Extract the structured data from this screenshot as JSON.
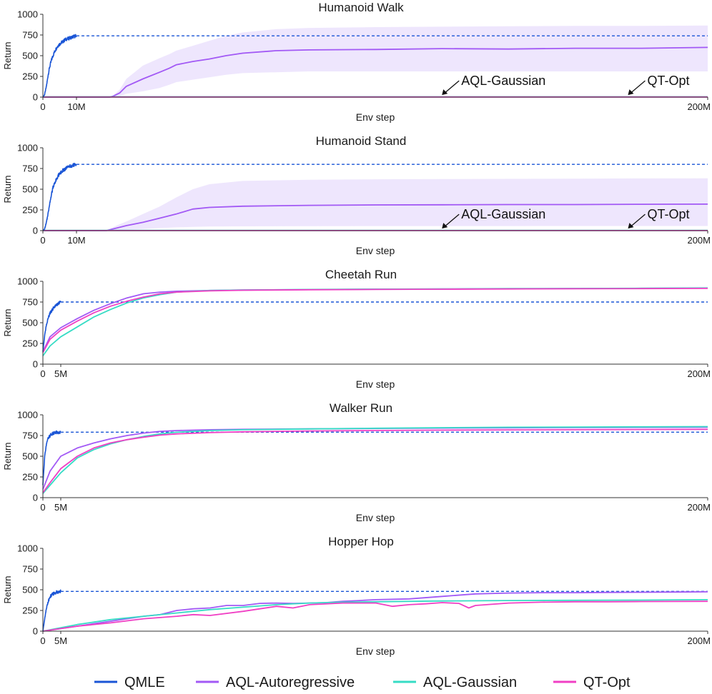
{
  "colors": {
    "QMLE": "#1a55d6",
    "AQL-Autoregressive": "#a259f5",
    "AQL-Gaussian": "#36dcc5",
    "QT-Opt": "#f03fc4",
    "band": "#ece3fd",
    "axis": "#333333"
  },
  "legend": {
    "items": [
      {
        "name": "QMLE",
        "label": "QMLE"
      },
      {
        "name": "AQL-Autoregressive",
        "label": "AQL-Autoregressive"
      },
      {
        "name": "AQL-Gaussian",
        "label": "AQL-Gaussian"
      },
      {
        "name": "QT-Opt",
        "label": "QT-Opt"
      }
    ]
  },
  "chart_data": [
    {
      "type": "line",
      "title": "Humanoid Walk",
      "xlabel": "Env step",
      "ylabel": "Return",
      "x_unit": "M",
      "xlim": [
        0,
        200
      ],
      "ylim": [
        0,
        1000
      ],
      "x_tick_values": [
        0,
        10,
        200
      ],
      "x_tick_labels": [
        "0",
        "10M",
        "200M"
      ],
      "y_tick_values": [
        0,
        250,
        500,
        750,
        1000
      ],
      "y_tick_labels": [
        "0",
        "250",
        "500",
        "750",
        "1000"
      ],
      "reference_line": {
        "series": "QMLE",
        "value": 740,
        "style": "dashed"
      },
      "annotations": [
        {
          "text": "AQL-Gaussian",
          "x": 120,
          "y": 25
        },
        {
          "text": "QT-Opt",
          "x": 176,
          "y": 25
        }
      ],
      "series": [
        {
          "name": "QMLE",
          "x": [
            0,
            0.5,
            1,
            1.5,
            2,
            2.5,
            3,
            3.5,
            4,
            4.5,
            5,
            5.5,
            6,
            6.5,
            7,
            7.5,
            8,
            8.5,
            9,
            9.5,
            10
          ],
          "y": [
            0,
            30,
            120,
            250,
            360,
            440,
            500,
            550,
            590,
            620,
            640,
            660,
            670,
            690,
            700,
            705,
            715,
            720,
            730,
            735,
            740
          ],
          "noisy": true
        },
        {
          "name": "AQL-Autoregressive",
          "x": [
            0,
            10,
            20,
            21,
            23,
            25,
            30,
            35,
            38,
            40,
            45,
            50,
            55,
            60,
            70,
            80,
            100,
            120,
            140,
            160,
            180,
            200
          ],
          "y": [
            0,
            0,
            0,
            10,
            50,
            130,
            220,
            300,
            350,
            390,
            430,
            460,
            500,
            530,
            560,
            570,
            575,
            585,
            580,
            590,
            590,
            600
          ],
          "band_low": [
            0,
            0,
            0,
            0,
            10,
            40,
            70,
            110,
            150,
            180,
            210,
            240,
            270,
            290,
            300,
            310,
            310,
            310,
            310,
            310,
            310,
            310
          ],
          "band_high": [
            0,
            0,
            0,
            20,
            90,
            220,
            380,
            470,
            520,
            560,
            620,
            680,
            740,
            780,
            820,
            835,
            845,
            850,
            855,
            860,
            860,
            865
          ]
        },
        {
          "name": "AQL-Gaussian",
          "x": [
            0,
            200
          ],
          "y": [
            3,
            3
          ]
        },
        {
          "name": "QT-Opt",
          "x": [
            0,
            200
          ],
          "y": [
            1,
            1
          ]
        }
      ]
    },
    {
      "type": "line",
      "title": "Humanoid Stand",
      "xlabel": "Env step",
      "ylabel": "Return",
      "x_unit": "M",
      "xlim": [
        0,
        200
      ],
      "ylim": [
        0,
        1000
      ],
      "x_tick_values": [
        0,
        10,
        200
      ],
      "x_tick_labels": [
        "0",
        "10M",
        "200M"
      ],
      "y_tick_values": [
        0,
        250,
        500,
        750,
        1000
      ],
      "y_tick_labels": [
        "0",
        "250",
        "500",
        "750",
        "1000"
      ],
      "reference_line": {
        "series": "QMLE",
        "value": 800,
        "style": "dashed"
      },
      "annotations": [
        {
          "text": "AQL-Gaussian",
          "x": 120,
          "y": 25
        },
        {
          "text": "QT-Opt",
          "x": 176,
          "y": 25
        }
      ],
      "series": [
        {
          "name": "QMLE",
          "x": [
            0,
            0.5,
            1,
            1.5,
            2,
            2.5,
            3,
            3.5,
            4,
            4.5,
            5,
            5.5,
            6,
            6.5,
            7,
            7.5,
            8,
            8.5,
            9,
            9.5,
            10
          ],
          "y": [
            0,
            20,
            90,
            200,
            320,
            430,
            520,
            580,
            620,
            660,
            690,
            710,
            730,
            740,
            755,
            765,
            775,
            780,
            790,
            795,
            800
          ],
          "noisy": true
        },
        {
          "name": "AQL-Autoregressive",
          "x": [
            0,
            10,
            19,
            20,
            22,
            25,
            30,
            35,
            40,
            45,
            50,
            60,
            80,
            100,
            120,
            140,
            160,
            180,
            200
          ],
          "y": [
            0,
            0,
            0,
            10,
            30,
            60,
            100,
            150,
            200,
            260,
            280,
            295,
            305,
            310,
            312,
            315,
            315,
            318,
            320
          ],
          "band_low": [
            0,
            0,
            0,
            0,
            5,
            10,
            20,
            30,
            40,
            45,
            50,
            52,
            54,
            55,
            55,
            55,
            56,
            56,
            56
          ],
          "band_high": [
            0,
            0,
            0,
            20,
            60,
            110,
            200,
            290,
            400,
            500,
            560,
            600,
            615,
            620,
            622,
            625,
            628,
            630,
            632
          ]
        },
        {
          "name": "AQL-Gaussian",
          "x": [
            0,
            200
          ],
          "y": [
            3,
            3
          ]
        },
        {
          "name": "QT-Opt",
          "x": [
            0,
            200
          ],
          "y": [
            1,
            1
          ]
        }
      ]
    },
    {
      "type": "line",
      "title": "Cheetah Run",
      "xlabel": "Env step",
      "ylabel": "Return",
      "x_unit": "M",
      "xlim": [
        0,
        200
      ],
      "ylim": [
        0,
        1000
      ],
      "x_tick_values": [
        0,
        5,
        200
      ],
      "x_tick_labels": [
        "0",
        "5M",
        "200M"
      ],
      "y_tick_values": [
        0,
        250,
        500,
        750,
        1000
      ],
      "y_tick_labels": [
        "0",
        "250",
        "500",
        "750",
        "1000"
      ],
      "reference_line": {
        "series": "QMLE",
        "value": 750,
        "style": "dashed"
      },
      "annotations": [],
      "series": [
        {
          "name": "QMLE",
          "x": [
            0,
            0.5,
            1,
            1.5,
            2,
            2.5,
            3,
            3.5,
            4,
            4.5,
            5
          ],
          "y": [
            150,
            350,
            480,
            560,
            610,
            650,
            680,
            700,
            720,
            735,
            750
          ],
          "noisy": true
        },
        {
          "name": "AQL-Autoregressive",
          "x": [
            0,
            2,
            5,
            10,
            15,
            20,
            25,
            30,
            35,
            40,
            50,
            60,
            80,
            100,
            120,
            140,
            160,
            180,
            200
          ],
          "y": [
            150,
            330,
            440,
            550,
            650,
            730,
            800,
            850,
            870,
            880,
            890,
            895,
            900,
            905,
            905,
            910,
            912,
            915,
            918
          ]
        },
        {
          "name": "AQL-Gaussian",
          "x": [
            0,
            2,
            5,
            10,
            15,
            20,
            25,
            30,
            35,
            40,
            50,
            60,
            80,
            100,
            120,
            140,
            160,
            180,
            200
          ],
          "y": [
            100,
            220,
            330,
            450,
            570,
            660,
            740,
            800,
            840,
            870,
            890,
            895,
            902,
            905,
            908,
            912,
            914,
            916,
            920
          ]
        },
        {
          "name": "QT-Opt",
          "x": [
            0,
            2,
            5,
            10,
            15,
            20,
            25,
            30,
            35,
            40,
            50,
            60,
            80,
            100,
            120,
            140,
            160,
            180,
            200
          ],
          "y": [
            140,
            300,
            410,
            520,
            620,
            700,
            760,
            810,
            850,
            870,
            885,
            892,
            898,
            902,
            905,
            908,
            910,
            912,
            915
          ]
        }
      ]
    },
    {
      "type": "line",
      "title": "Walker Run",
      "xlabel": "Env step",
      "ylabel": "Return",
      "x_unit": "M",
      "xlim": [
        0,
        200
      ],
      "ylim": [
        0,
        1000
      ],
      "x_tick_values": [
        0,
        5,
        200
      ],
      "x_tick_labels": [
        "0",
        "5M",
        "200M"
      ],
      "y_tick_values": [
        0,
        250,
        500,
        750,
        1000
      ],
      "y_tick_labels": [
        "0",
        "250",
        "500",
        "750",
        "1000"
      ],
      "reference_line": {
        "series": "QMLE",
        "value": 790,
        "style": "dashed"
      },
      "annotations": [],
      "series": [
        {
          "name": "QMLE",
          "x": [
            0,
            0.5,
            1,
            1.5,
            2,
            2.5,
            3,
            3.5,
            4,
            4.5,
            5
          ],
          "y": [
            150,
            500,
            650,
            720,
            750,
            770,
            780,
            785,
            788,
            790,
            790
          ],
          "noisy": true
        },
        {
          "name": "AQL-Autoregressive",
          "x": [
            0,
            2,
            5,
            10,
            15,
            20,
            25,
            30,
            35,
            40,
            50,
            60,
            80,
            100,
            120,
            140,
            160,
            180,
            200
          ],
          "y": [
            100,
            320,
            500,
            600,
            660,
            710,
            750,
            780,
            800,
            810,
            820,
            825,
            830,
            835,
            840,
            843,
            846,
            848,
            850
          ]
        },
        {
          "name": "AQL-Gaussian",
          "x": [
            0,
            2,
            5,
            10,
            15,
            20,
            25,
            30,
            35,
            40,
            50,
            60,
            80,
            100,
            120,
            140,
            160,
            180,
            200
          ],
          "y": [
            50,
            150,
            300,
            480,
            580,
            650,
            700,
            740,
            770,
            790,
            810,
            820,
            830,
            838,
            845,
            850,
            853,
            855,
            858
          ]
        },
        {
          "name": "QT-Opt",
          "x": [
            0,
            2,
            5,
            10,
            15,
            20,
            25,
            30,
            35,
            40,
            50,
            60,
            80,
            100,
            120,
            140,
            160,
            180,
            200
          ],
          "y": [
            60,
            180,
            350,
            500,
            600,
            660,
            700,
            730,
            755,
            770,
            785,
            795,
            805,
            810,
            815,
            818,
            820,
            822,
            825
          ]
        }
      ]
    },
    {
      "type": "line",
      "title": "Hopper Hop",
      "xlabel": "Env step",
      "ylabel": "Return",
      "x_unit": "M",
      "xlim": [
        0,
        200
      ],
      "ylim": [
        0,
        1000
      ],
      "x_tick_values": [
        0,
        5,
        200
      ],
      "x_tick_labels": [
        "0",
        "5M",
        "200M"
      ],
      "y_tick_values": [
        0,
        250,
        500,
        750,
        1000
      ],
      "y_tick_labels": [
        "0",
        "250",
        "500",
        "750",
        "1000"
      ],
      "reference_line": {
        "series": "QMLE",
        "value": 480,
        "style": "dashed"
      },
      "annotations": [],
      "series": [
        {
          "name": "QMLE",
          "x": [
            0,
            0.5,
            1,
            1.5,
            2,
            2.5,
            3,
            3.5,
            4,
            4.5,
            5
          ],
          "y": [
            0,
            150,
            280,
            360,
            410,
            440,
            455,
            465,
            472,
            478,
            480
          ],
          "noisy": true
        },
        {
          "name": "AQL-Autoregressive",
          "x": [
            0,
            10,
            20,
            30,
            35,
            40,
            45,
            50,
            55,
            60,
            65,
            70,
            75,
            80,
            85,
            90,
            95,
            100,
            110,
            120,
            130,
            140,
            150,
            160,
            170,
            180,
            190,
            200
          ],
          "y": [
            0,
            60,
            120,
            180,
            200,
            250,
            270,
            280,
            310,
            310,
            335,
            340,
            335,
            340,
            345,
            360,
            370,
            380,
            390,
            420,
            450,
            460,
            465,
            465,
            468,
            470,
            472,
            475
          ]
        },
        {
          "name": "AQL-Gaussian",
          "x": [
            0,
            10,
            20,
            30,
            40,
            50,
            60,
            70,
            80,
            90,
            100,
            120,
            140,
            160,
            180,
            200
          ],
          "y": [
            0,
            80,
            140,
            180,
            220,
            260,
            290,
            320,
            340,
            350,
            355,
            365,
            370,
            372,
            375,
            380
          ]
        },
        {
          "name": "QT-Opt",
          "x": [
            0,
            10,
            20,
            30,
            40,
            45,
            50,
            60,
            65,
            70,
            75,
            80,
            90,
            100,
            105,
            110,
            115,
            120,
            125,
            128,
            130,
            140,
            150,
            160,
            170,
            180,
            200
          ],
          "y": [
            0,
            60,
            100,
            150,
            180,
            200,
            190,
            240,
            270,
            300,
            280,
            320,
            340,
            340,
            300,
            320,
            330,
            345,
            335,
            280,
            310,
            340,
            350,
            355,
            355,
            358,
            360
          ]
        }
      ]
    }
  ]
}
